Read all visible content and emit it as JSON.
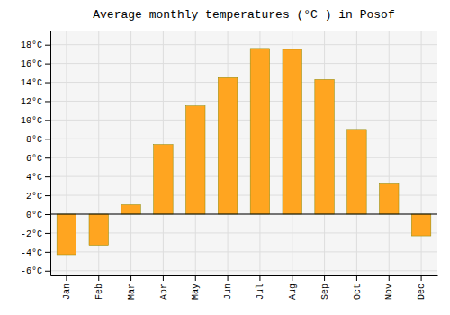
{
  "chart_data": {
    "type": "bar",
    "title": "Average monthly temperatures (°C ) in Posof",
    "categories": [
      "Jan",
      "Feb",
      "Mar",
      "Apr",
      "May",
      "Jun",
      "Jul",
      "Aug",
      "Sep",
      "Oct",
      "Nov",
      "Dec"
    ],
    "values": [
      -4.3,
      -3.3,
      1.0,
      7.4,
      11.5,
      14.5,
      17.6,
      17.5,
      14.3,
      9.0,
      3.3,
      -2.3
    ],
    "color": "#FFA520",
    "ylim": [
      -6.5,
      19.5
    ],
    "yticks": [
      {
        "value": -6,
        "label": "-6°C"
      },
      {
        "value": -4,
        "label": "-4°C"
      },
      {
        "value": -2,
        "label": "-2°C"
      },
      {
        "value": 0,
        "label": "0°C"
      },
      {
        "value": 2,
        "label": "2°C"
      },
      {
        "value": 4,
        "label": "4°C"
      },
      {
        "value": 6,
        "label": "6°C"
      },
      {
        "value": 8,
        "label": "8°C"
      },
      {
        "value": 10,
        "label": "10°C"
      },
      {
        "value": 12,
        "label": "12°C"
      },
      {
        "value": 14,
        "label": "14°C"
      },
      {
        "value": 16,
        "label": "16°C"
      },
      {
        "value": 18,
        "label": "18°C"
      }
    ],
    "grid": true
  }
}
